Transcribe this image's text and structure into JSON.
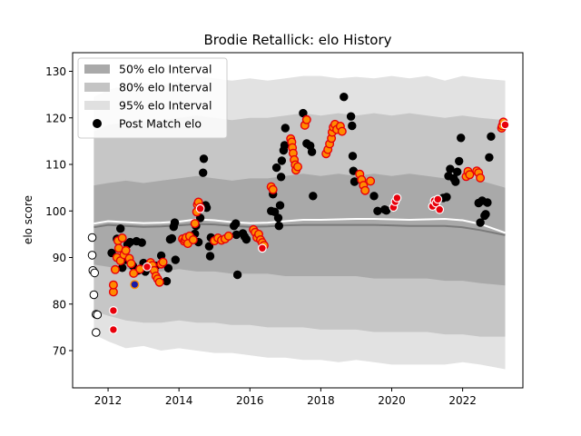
{
  "chart_data": {
    "type": "scatter",
    "title": "Brodie Retallick: elo History",
    "xlabel": "",
    "ylabel": "elo score",
    "xlim": [
      2011.0,
      2023.7
    ],
    "ylim": [
      62,
      134
    ],
    "x_ticks": [
      2012,
      2014,
      2016,
      2018,
      2020,
      2022
    ],
    "y_ticks": [
      70,
      80,
      90,
      100,
      110,
      120,
      130
    ],
    "grid": false,
    "legend_position": "top-left",
    "legend": [
      {
        "label": "50% elo Interval",
        "kind": "band",
        "color": "#a9a9a9"
      },
      {
        "label": "80% elo Interval",
        "kind": "band",
        "color": "#c4c4c4"
      },
      {
        "label": "95% elo Interval",
        "kind": "band",
        "color": "#e0e0e0"
      },
      {
        "label": "Post Match elo",
        "kind": "marker",
        "color": "#000000"
      }
    ],
    "colors": {
      "band50": "#a9a9a9",
      "band80": "#c6c6c6",
      "band95": "#e2e2e2",
      "mean_line": "#ffffff",
      "median_line": "#7a7a7a",
      "post_match": "#000000",
      "win_marker": "#ff8c00",
      "loss_marker": "#e8000b",
      "pre_debut": "#ffffff",
      "highlight": "#1a1aa6"
    },
    "band_start": 2011.6,
    "band_end": 2023.2,
    "mean_line": [
      [
        2011.6,
        97.3
      ],
      [
        2012.0,
        97.8
      ],
      [
        2012.5,
        97.6
      ],
      [
        2013.0,
        97.4
      ],
      [
        2013.5,
        97.5
      ],
      [
        2014.0,
        97.7
      ],
      [
        2014.5,
        98.2
      ],
      [
        2015.0,
        98.0
      ],
      [
        2015.5,
        97.6
      ],
      [
        2016.0,
        97.4
      ],
      [
        2016.5,
        97.5
      ],
      [
        2017.0,
        97.8
      ],
      [
        2017.5,
        98.1
      ],
      [
        2018.0,
        98.1
      ],
      [
        2018.5,
        98.2
      ],
      [
        2019.0,
        98.3
      ],
      [
        2019.5,
        98.3
      ],
      [
        2020.0,
        98.2
      ],
      [
        2020.5,
        98.1
      ],
      [
        2021.0,
        98.2
      ],
      [
        2021.5,
        98.3
      ],
      [
        2022.0,
        98.0
      ],
      [
        2022.5,
        97.2
      ],
      [
        2023.2,
        95.3
      ]
    ],
    "median_line": [
      [
        2011.6,
        96.5
      ],
      [
        2012.0,
        97.0
      ],
      [
        2012.5,
        96.8
      ],
      [
        2013.0,
        96.6
      ],
      [
        2013.5,
        96.7
      ],
      [
        2014.0,
        96.9
      ],
      [
        2014.5,
        97.2
      ],
      [
        2015.0,
        97.1
      ],
      [
        2015.5,
        96.8
      ],
      [
        2016.0,
        96.6
      ],
      [
        2016.5,
        96.7
      ],
      [
        2017.0,
        96.9
      ],
      [
        2017.5,
        97.0
      ],
      [
        2018.0,
        97.0
      ],
      [
        2018.5,
        97.0
      ],
      [
        2019.0,
        97.0
      ],
      [
        2019.5,
        97.0
      ],
      [
        2020.0,
        96.9
      ],
      [
        2020.5,
        96.8
      ],
      [
        2021.0,
        96.8
      ],
      [
        2021.5,
        96.8
      ],
      [
        2022.0,
        96.5
      ],
      [
        2022.5,
        95.9
      ],
      [
        2023.2,
        94.8
      ]
    ],
    "band95": [
      [
        2011.6,
        124.5,
        73.5
      ],
      [
        2012.0,
        126.0,
        72.0
      ],
      [
        2012.5,
        127.0,
        70.5
      ],
      [
        2013.0,
        127.5,
        71.0
      ],
      [
        2013.5,
        127.0,
        70.0
      ],
      [
        2014.0,
        127.8,
        70.5
      ],
      [
        2014.5,
        129.0,
        70.0
      ],
      [
        2015.0,
        128.5,
        69.5
      ],
      [
        2015.5,
        128.0,
        69.5
      ],
      [
        2016.0,
        128.5,
        69.0
      ],
      [
        2016.5,
        128.0,
        68.5
      ],
      [
        2017.0,
        128.5,
        68.5
      ],
      [
        2017.5,
        129.0,
        68.0
      ],
      [
        2018.0,
        129.0,
        68.0
      ],
      [
        2018.5,
        128.5,
        67.5
      ],
      [
        2019.0,
        128.8,
        68.0
      ],
      [
        2019.5,
        128.5,
        67.5
      ],
      [
        2020.0,
        129.0,
        67.0
      ],
      [
        2020.5,
        128.5,
        67.0
      ],
      [
        2021.0,
        129.0,
        67.0
      ],
      [
        2021.5,
        128.0,
        67.0
      ],
      [
        2022.0,
        129.0,
        67.5
      ],
      [
        2022.5,
        128.5,
        67.0
      ],
      [
        2023.2,
        128.0,
        66.0
      ]
    ],
    "band80": [
      [
        2011.6,
        117.0,
        78.5
      ],
      [
        2012.0,
        118.5,
        77.5
      ],
      [
        2012.5,
        119.0,
        76.5
      ],
      [
        2013.0,
        119.0,
        76.0
      ],
      [
        2013.5,
        119.5,
        76.0
      ],
      [
        2014.0,
        120.0,
        76.5
      ],
      [
        2014.5,
        120.5,
        76.0
      ],
      [
        2015.0,
        120.0,
        76.0
      ],
      [
        2015.5,
        119.5,
        75.5
      ],
      [
        2016.0,
        120.0,
        75.5
      ],
      [
        2016.5,
        120.0,
        75.0
      ],
      [
        2017.0,
        120.5,
        75.0
      ],
      [
        2017.5,
        121.0,
        75.0
      ],
      [
        2018.0,
        120.5,
        74.5
      ],
      [
        2018.5,
        121.0,
        74.5
      ],
      [
        2019.0,
        120.5,
        74.5
      ],
      [
        2019.5,
        121.0,
        74.0
      ],
      [
        2020.0,
        120.5,
        74.0
      ],
      [
        2020.5,
        121.0,
        74.0
      ],
      [
        2021.0,
        120.5,
        74.0
      ],
      [
        2021.5,
        120.0,
        73.5
      ],
      [
        2022.0,
        120.5,
        73.5
      ],
      [
        2022.5,
        120.0,
        73.0
      ],
      [
        2023.2,
        119.5,
        73.0
      ]
    ],
    "band50": [
      [
        2011.6,
        105.5,
        88.5
      ],
      [
        2012.0,
        106.0,
        88.0
      ],
      [
        2012.5,
        106.5,
        87.5
      ],
      [
        2013.0,
        106.0,
        87.0
      ],
      [
        2013.5,
        106.5,
        87.0
      ],
      [
        2014.0,
        107.0,
        87.5
      ],
      [
        2014.5,
        107.5,
        87.0
      ],
      [
        2015.0,
        107.0,
        87.0
      ],
      [
        2015.5,
        106.5,
        86.5
      ],
      [
        2016.0,
        107.0,
        86.5
      ],
      [
        2016.5,
        107.0,
        86.5
      ],
      [
        2017.0,
        107.5,
        86.0
      ],
      [
        2017.5,
        108.0,
        86.0
      ],
      [
        2018.0,
        107.5,
        86.0
      ],
      [
        2018.5,
        108.0,
        86.0
      ],
      [
        2019.0,
        107.5,
        86.0
      ],
      [
        2019.5,
        108.0,
        85.5
      ],
      [
        2020.0,
        107.5,
        85.5
      ],
      [
        2020.5,
        108.0,
        85.5
      ],
      [
        2021.0,
        107.5,
        85.5
      ],
      [
        2021.5,
        107.0,
        85.0
      ],
      [
        2022.0,
        107.5,
        85.0
      ],
      [
        2022.5,
        106.5,
        84.5
      ],
      [
        2023.2,
        105.0,
        84.0
      ]
    ],
    "pre_debut_points": [
      [
        2011.55,
        94.3
      ],
      [
        2011.55,
        90.5
      ],
      [
        2011.57,
        87.2
      ],
      [
        2011.62,
        86.7
      ],
      [
        2011.6,
        82.0
      ],
      [
        2011.66,
        77.8
      ],
      [
        2011.7,
        77.7
      ],
      [
        2011.66,
        73.9
      ]
    ],
    "post_match_points": [
      [
        2012.1,
        91.0
      ],
      [
        2012.25,
        94.0
      ],
      [
        2012.35,
        96.2
      ],
      [
        2012.4,
        87.8
      ],
      [
        2012.5,
        89.5
      ],
      [
        2012.55,
        92.8
      ],
      [
        2012.62,
        93.3
      ],
      [
        2012.7,
        88.2
      ],
      [
        2012.75,
        86.8
      ],
      [
        2012.8,
        93.5
      ],
      [
        2012.85,
        87.2
      ],
      [
        2012.95,
        93.2
      ],
      [
        2013.0,
        88.8
      ],
      [
        2013.05,
        87.0
      ],
      [
        2013.35,
        88.2
      ],
      [
        2013.5,
        90.4
      ],
      [
        2013.65,
        84.9
      ],
      [
        2013.7,
        87.7
      ],
      [
        2013.75,
        93.9
      ],
      [
        2013.8,
        94.1
      ],
      [
        2013.85,
        96.6
      ],
      [
        2013.88,
        97.5
      ],
      [
        2013.9,
        89.5
      ],
      [
        2014.45,
        95.1
      ],
      [
        2014.48,
        96.8
      ],
      [
        2014.55,
        93.3
      ],
      [
        2014.6,
        98.5
      ],
      [
        2014.7,
        111.2
      ],
      [
        2014.68,
        108.2
      ],
      [
        2014.75,
        101.2
      ],
      [
        2014.78,
        100.7
      ],
      [
        2014.85,
        92.4
      ],
      [
        2014.88,
        90.3
      ],
      [
        2014.9,
        94.3
      ],
      [
        2015.55,
        96.8
      ],
      [
        2015.6,
        97.3
      ],
      [
        2015.62,
        94.9
      ],
      [
        2015.65,
        86.3
      ],
      [
        2015.8,
        95.2
      ],
      [
        2015.85,
        94.5
      ],
      [
        2015.9,
        93.9
      ],
      [
        2016.6,
        100.0
      ],
      [
        2016.65,
        103.6
      ],
      [
        2016.7,
        99.8
      ],
      [
        2016.75,
        109.3
      ],
      [
        2016.8,
        98.5
      ],
      [
        2016.82,
        96.8
      ],
      [
        2016.85,
        101.2
      ],
      [
        2016.88,
        107.3
      ],
      [
        2016.9,
        110.8
      ],
      [
        2016.95,
        113.0
      ],
      [
        2016.98,
        114.1
      ],
      [
        2017.0,
        117.8
      ],
      [
        2017.5,
        121.0
      ],
      [
        2017.55,
        118.5
      ],
      [
        2017.6,
        114.5
      ],
      [
        2017.7,
        114.0
      ],
      [
        2017.75,
        112.7
      ],
      [
        2017.78,
        103.2
      ],
      [
        2018.65,
        124.5
      ],
      [
        2018.85,
        120.3
      ],
      [
        2018.88,
        118.3
      ],
      [
        2018.9,
        111.8
      ],
      [
        2018.92,
        108.6
      ],
      [
        2018.95,
        106.3
      ],
      [
        2019.5,
        103.2
      ],
      [
        2019.6,
        100.0
      ],
      [
        2019.8,
        100.3
      ],
      [
        2019.85,
        100.1
      ],
      [
        2021.45,
        102.8
      ],
      [
        2021.55,
        103.0
      ],
      [
        2021.6,
        107.5
      ],
      [
        2021.65,
        109.0
      ],
      [
        2021.75,
        107.0
      ],
      [
        2021.8,
        106.3
      ],
      [
        2021.85,
        108.4
      ],
      [
        2021.95,
        115.7
      ],
      [
        2021.9,
        110.7
      ],
      [
        2022.45,
        101.7
      ],
      [
        2022.5,
        97.5
      ],
      [
        2022.55,
        102.2
      ],
      [
        2022.62,
        99.0
      ],
      [
        2022.65,
        99.3
      ],
      [
        2022.7,
        101.8
      ],
      [
        2022.75,
        111.5
      ],
      [
        2022.8,
        116.0
      ]
    ],
    "win_points": [
      [
        2012.15,
        82.6
      ],
      [
        2012.15,
        84.1
      ],
      [
        2012.2,
        87.4
      ],
      [
        2012.25,
        90.0
      ],
      [
        2012.28,
        93.6
      ],
      [
        2012.3,
        92.0
      ],
      [
        2012.35,
        89.3
      ],
      [
        2012.4,
        94.2
      ],
      [
        2012.45,
        90.6
      ],
      [
        2012.5,
        91.5
      ],
      [
        2012.6,
        89.8
      ],
      [
        2012.65,
        88.7
      ],
      [
        2012.72,
        86.6
      ],
      [
        2012.9,
        87.5
      ],
      [
        2013.2,
        88.9
      ],
      [
        2013.25,
        88.3
      ],
      [
        2013.3,
        87.2
      ],
      [
        2013.35,
        86.0
      ],
      [
        2013.4,
        85.4
      ],
      [
        2013.45,
        84.7
      ],
      [
        2013.5,
        88.6
      ],
      [
        2013.55,
        89.0
      ],
      [
        2014.1,
        94.0
      ],
      [
        2014.15,
        93.5
      ],
      [
        2014.18,
        93.8
      ],
      [
        2014.2,
        94.3
      ],
      [
        2014.25,
        93.0
      ],
      [
        2014.3,
        94.6
      ],
      [
        2014.4,
        93.8
      ],
      [
        2014.45,
        97.3
      ],
      [
        2014.5,
        99.8
      ],
      [
        2014.52,
        101.4
      ],
      [
        2014.55,
        101.9
      ],
      [
        2014.6,
        100.8
      ],
      [
        2015.0,
        93.6
      ],
      [
        2015.1,
        94.2
      ],
      [
        2015.2,
        93.7
      ],
      [
        2015.3,
        94.0
      ],
      [
        2015.4,
        94.6
      ],
      [
        2016.1,
        96.0
      ],
      [
        2016.15,
        95.4
      ],
      [
        2016.2,
        94.3
      ],
      [
        2016.25,
        95.0
      ],
      [
        2016.3,
        93.8
      ],
      [
        2016.35,
        93.2
      ],
      [
        2016.4,
        92.6
      ],
      [
        2016.6,
        105.2
      ],
      [
        2016.65,
        104.6
      ],
      [
        2017.15,
        115.5
      ],
      [
        2017.18,
        114.8
      ],
      [
        2017.2,
        113.6
      ],
      [
        2017.22,
        112.4
      ],
      [
        2017.25,
        111.0
      ],
      [
        2017.28,
        109.9
      ],
      [
        2017.3,
        108.8
      ],
      [
        2017.35,
        109.5
      ],
      [
        2017.55,
        118.4
      ],
      [
        2017.6,
        119.6
      ],
      [
        2018.15,
        112.3
      ],
      [
        2018.2,
        113.2
      ],
      [
        2018.25,
        114.4
      ],
      [
        2018.3,
        115.6
      ],
      [
        2018.32,
        116.9
      ],
      [
        2018.35,
        118.0
      ],
      [
        2018.4,
        118.6
      ],
      [
        2018.45,
        117.5
      ],
      [
        2018.55,
        118.2
      ],
      [
        2018.6,
        117.1
      ],
      [
        2019.1,
        107.9
      ],
      [
        2019.15,
        106.7
      ],
      [
        2019.2,
        105.5
      ],
      [
        2019.25,
        104.4
      ],
      [
        2019.4,
        106.4
      ],
      [
        2022.1,
        107.4
      ],
      [
        2022.15,
        108.5
      ],
      [
        2022.2,
        107.8
      ],
      [
        2022.4,
        108.6
      ],
      [
        2022.45,
        108.2
      ],
      [
        2022.5,
        107.1
      ],
      [
        2023.1,
        117.8
      ],
      [
        2023.12,
        118.3
      ],
      [
        2023.15,
        119.1
      ]
    ],
    "loss_points": [
      [
        2012.15,
        74.5
      ],
      [
        2012.15,
        78.6
      ],
      [
        2013.1,
        88.0
      ],
      [
        2014.6,
        100.5
      ],
      [
        2016.35,
        92.0
      ],
      [
        2020.05,
        100.8
      ],
      [
        2020.1,
        102.0
      ],
      [
        2020.15,
        102.8
      ],
      [
        2021.15,
        101.0
      ],
      [
        2021.2,
        102.2
      ],
      [
        2021.25,
        101.7
      ],
      [
        2021.3,
        102.5
      ],
      [
        2021.35,
        100.3
      ],
      [
        2023.2,
        118.5
      ]
    ],
    "highlight_points": [
      [
        2012.75,
        84.2
      ]
    ]
  }
}
